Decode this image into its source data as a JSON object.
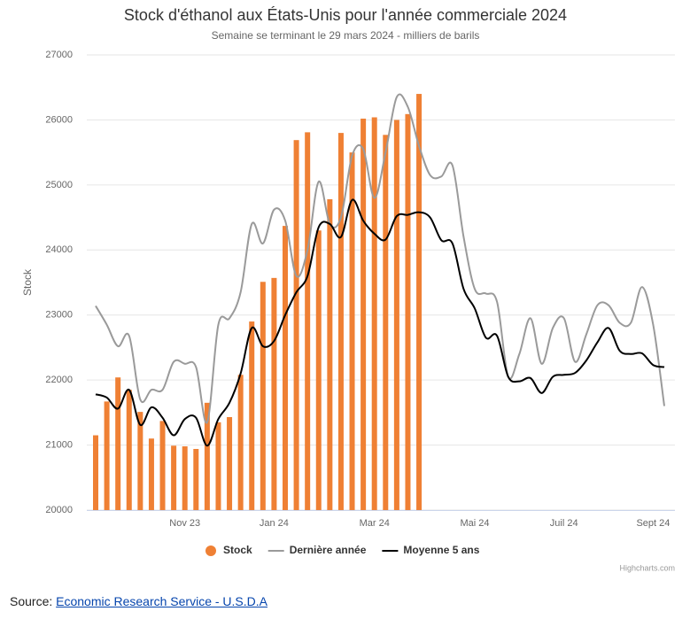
{
  "chart_data": {
    "type": "bar_line",
    "title": "Stock d'éthanol aux États-Unis pour l'année commerciale 2024",
    "subtitle": "Semaine se terminant le 29 mars 2024 - milliers de barils",
    "y_axis_label": "Stock",
    "credits": "Highcharts.com",
    "categories": [
      null,
      null,
      null,
      null,
      null,
      null,
      null,
      null,
      "Nov 23",
      null,
      null,
      null,
      null,
      null,
      null,
      null,
      "Jan 24",
      null,
      null,
      null,
      null,
      null,
      null,
      null,
      null,
      "Mar 24",
      null,
      null,
      null,
      null,
      null,
      null,
      null,
      null,
      "Mai 24",
      null,
      null,
      null,
      null,
      null,
      null,
      null,
      "Juil 24",
      null,
      null,
      null,
      null,
      null,
      null,
      null,
      "Sept 24",
      null
    ],
    "ylim": [
      20000,
      27000
    ],
    "yticks": [
      20000,
      21000,
      22000,
      23000,
      24000,
      25000,
      26000,
      27000
    ],
    "grid": true,
    "legend": "bottom",
    "series": [
      {
        "name": "Stock",
        "kind": "bar",
        "color": "#ef8034",
        "values": [
          21150,
          21670,
          22040,
          21850,
          21510,
          21100,
          21370,
          20990,
          20980,
          20940,
          21650,
          21350,
          21430,
          22080,
          22900,
          23510,
          23570,
          24370,
          25690,
          25810,
          24300,
          24780,
          25800,
          25500,
          26020,
          26040,
          25770,
          26000,
          26090,
          26400,
          null,
          null,
          null,
          null,
          null,
          null,
          null,
          null,
          null,
          null,
          null,
          null,
          null,
          null,
          null,
          null,
          null,
          null,
          null,
          null,
          null,
          null
        ]
      },
      {
        "name": "Dernière année",
        "kind": "line",
        "color": "#9a9a9a",
        "values": [
          23140,
          22850,
          22520,
          22680,
          21700,
          21850,
          21850,
          22280,
          22250,
          22200,
          21350,
          22850,
          22950,
          23350,
          24400,
          24100,
          24620,
          24450,
          23600,
          24000,
          25050,
          24400,
          24500,
          25450,
          25550,
          24800,
          25500,
          26350,
          26200,
          25600,
          25150,
          25130,
          25300,
          24200,
          23400,
          23330,
          23200,
          22050,
          22400,
          22950,
          22250,
          22800,
          22950,
          22280,
          22700,
          23150,
          23150,
          22880,
          22880,
          23430,
          22850,
          21600
        ]
      },
      {
        "name": "Moyenne 5 ans",
        "kind": "line",
        "color": "#000000",
        "values": [
          21780,
          21730,
          21560,
          21850,
          21310,
          21580,
          21420,
          21150,
          21400,
          21420,
          20990,
          21400,
          21650,
          22100,
          22800,
          22520,
          22600,
          23000,
          23350,
          23600,
          24350,
          24400,
          24200,
          24770,
          24450,
          24250,
          24160,
          24520,
          24540,
          24580,
          24500,
          24150,
          24100,
          23400,
          23100,
          22650,
          22680,
          22050,
          21980,
          22030,
          21800,
          22050,
          22080,
          22110,
          22300,
          22580,
          22800,
          22450,
          22400,
          22410,
          22230,
          22200
        ]
      }
    ]
  },
  "source": {
    "label": "Source:",
    "link": "Economic Research Service - U.S.D.A"
  }
}
